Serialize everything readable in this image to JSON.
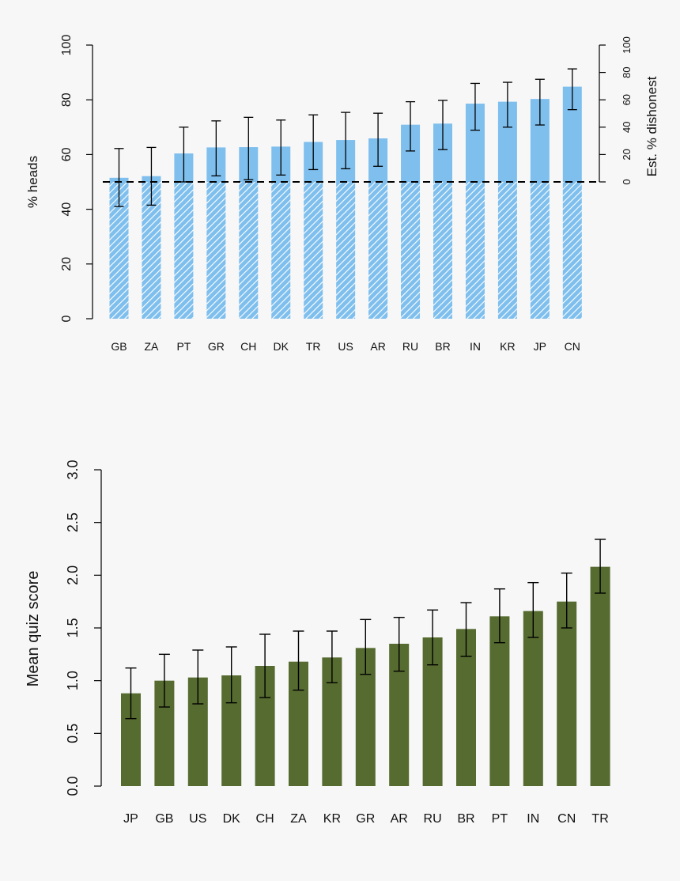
{
  "charts": {
    "top": {
      "type": "bar",
      "ylabel": "% heads",
      "y2label": "Est. % dishonest",
      "ylim": [
        0,
        100
      ],
      "yticks": [
        0,
        20,
        40,
        60,
        80,
        100
      ],
      "y2ticks": [
        0,
        20,
        40,
        60,
        80,
        100
      ],
      "reference_line": 50,
      "bar_color": "#7fbfee",
      "hatch_color": "#ffffff",
      "categories": [
        "GB",
        "ZA",
        "PT",
        "GR",
        "CH",
        "DK",
        "TR",
        "US",
        "AR",
        "RU",
        "BR",
        "IN",
        "KR",
        "JP",
        "CN"
      ],
      "values": [
        51.5,
        52.1,
        60.4,
        62.6,
        62.7,
        62.9,
        64.6,
        65.3,
        65.9,
        70.9,
        71.3,
        78.6,
        79.3,
        80.3,
        84.8
      ],
      "err_low": [
        41.0,
        41.5,
        50.0,
        52.2,
        50.8,
        52.5,
        54.5,
        54.8,
        55.7,
        61.3,
        61.8,
        68.9,
        70.0,
        70.8,
        76.4
      ],
      "err_high": [
        62.2,
        62.6,
        70.0,
        72.3,
        73.6,
        72.6,
        74.5,
        75.4,
        75.1,
        79.3,
        79.8,
        86.0,
        86.4,
        87.5,
        91.3
      ]
    },
    "bottom": {
      "type": "bar",
      "ylabel": "Mean quiz score",
      "ylim": [
        0,
        3
      ],
      "yticks": [
        "0.0",
        "0.5",
        "1.0",
        "1.5",
        "2.0",
        "2.5",
        "3.0"
      ],
      "bar_color": "#566b30",
      "categories": [
        "JP",
        "GB",
        "US",
        "DK",
        "CH",
        "ZA",
        "KR",
        "GR",
        "AR",
        "RU",
        "BR",
        "PT",
        "IN",
        "CN",
        "TR"
      ],
      "values": [
        0.88,
        1.0,
        1.03,
        1.05,
        1.14,
        1.18,
        1.22,
        1.31,
        1.35,
        1.41,
        1.49,
        1.61,
        1.66,
        1.75,
        2.08
      ],
      "err_low": [
        0.64,
        0.75,
        0.78,
        0.79,
        0.84,
        0.91,
        0.98,
        1.06,
        1.09,
        1.15,
        1.23,
        1.36,
        1.41,
        1.5,
        1.83
      ],
      "err_high": [
        1.12,
        1.25,
        1.29,
        1.32,
        1.44,
        1.47,
        1.47,
        1.58,
        1.6,
        1.67,
        1.74,
        1.87,
        1.93,
        2.02,
        2.34
      ]
    }
  }
}
